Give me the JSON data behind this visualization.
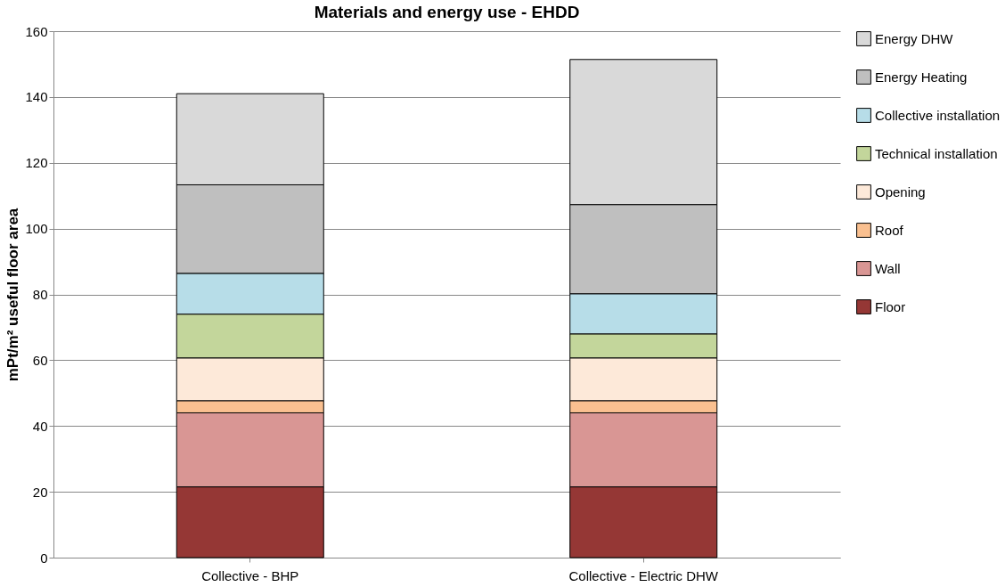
{
  "chart_data": {
    "type": "bar",
    "title": "Materials and energy use - EHDD",
    "ylabel": "mPt/m² useful floor area",
    "categories": [
      "Collective - BHP",
      "Collective - Electric DHW"
    ],
    "stacked": true,
    "ylim": [
      0,
      160
    ],
    "yticks": [
      0,
      20,
      40,
      60,
      80,
      100,
      120,
      140,
      160
    ],
    "grid": "y",
    "legend": "right",
    "series": [
      {
        "name": "Floor",
        "color": "#953735",
        "values": [
          21.5,
          21.5
        ]
      },
      {
        "name": "Wall",
        "color": "#d99694",
        "values": [
          22.5,
          22.5
        ]
      },
      {
        "name": "Roof",
        "color": "#fac090",
        "values": [
          3.7,
          3.7
        ]
      },
      {
        "name": "Opening",
        "color": "#fde9d9",
        "values": [
          13,
          13
        ]
      },
      {
        "name": "Technical installation",
        "color": "#c3d69b",
        "values": [
          13.3,
          7.3
        ]
      },
      {
        "name": "Collective installation",
        "color": "#b7dde8",
        "values": [
          12.4,
          12.2
        ]
      },
      {
        "name": "Energy Heating",
        "color": "#bfbfbf",
        "values": [
          26.9,
          27.1
        ]
      },
      {
        "name": "Energy DHW",
        "color": "#d9d9d9",
        "values": [
          27.7,
          44.1
        ]
      }
    ]
  }
}
